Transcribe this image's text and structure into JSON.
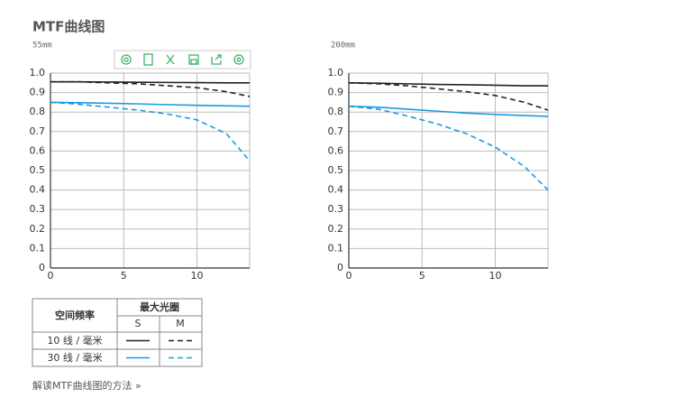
{
  "header": {
    "title": "MTF曲线图"
  },
  "chart_data": [
    {
      "type": "line",
      "subtitle": "55mm",
      "x": [
        0,
        2,
        4,
        6,
        8,
        10,
        12,
        13.6
      ],
      "xlim": [
        0,
        13.6
      ],
      "xticks": [
        0,
        5,
        10
      ],
      "ylim": [
        0,
        1
      ],
      "yticks": [
        0,
        0.1,
        0.2,
        0.3,
        0.4,
        0.5,
        0.6,
        0.7,
        0.8,
        0.9,
        {
          "value": 1,
          "label": "1.0"
        }
      ],
      "grid": true,
      "series": [
        {
          "color": "#222222",
          "linestyle": "solid",
          "values": [
            0.955,
            0.955,
            0.954,
            0.953,
            0.952,
            0.951,
            0.95,
            0.95
          ]
        },
        {
          "color": "#222222",
          "linestyle": "dashed",
          "values": [
            0.955,
            0.955,
            0.95,
            0.945,
            0.935,
            0.925,
            0.905,
            0.88
          ]
        },
        {
          "color": "#1a9ae0",
          "linestyle": "solid",
          "values": [
            0.85,
            0.848,
            0.845,
            0.842,
            0.838,
            0.835,
            0.832,
            0.83
          ]
        },
        {
          "color": "#1a9ae0",
          "linestyle": "dashed",
          "values": [
            0.85,
            0.84,
            0.825,
            0.81,
            0.79,
            0.76,
            0.69,
            0.55
          ]
        }
      ]
    },
    {
      "type": "line",
      "subtitle": "200mm",
      "x": [
        0,
        2,
        4,
        6,
        8,
        10,
        12,
        13.6
      ],
      "xlim": [
        0,
        13.6
      ],
      "xticks": [
        0,
        5,
        10
      ],
      "ylim": [
        0,
        1
      ],
      "yticks": [
        0,
        0.1,
        0.2,
        0.3,
        0.4,
        0.5,
        0.6,
        0.7,
        0.8,
        0.9,
        {
          "value": 1,
          "label": "1.0"
        }
      ],
      "grid": true,
      "series": [
        {
          "color": "#222222",
          "linestyle": "solid",
          "values": [
            0.95,
            0.948,
            0.945,
            0.942,
            0.94,
            0.938,
            0.935,
            0.935
          ]
        },
        {
          "color": "#222222",
          "linestyle": "dashed",
          "values": [
            0.95,
            0.945,
            0.935,
            0.92,
            0.905,
            0.885,
            0.85,
            0.81
          ]
        },
        {
          "color": "#1a9ae0",
          "linestyle": "solid",
          "values": [
            0.83,
            0.825,
            0.815,
            0.805,
            0.795,
            0.788,
            0.782,
            0.778
          ]
        },
        {
          "color": "#1a9ae0",
          "linestyle": "dashed",
          "values": [
            0.83,
            0.815,
            0.78,
            0.74,
            0.69,
            0.62,
            0.52,
            0.4
          ]
        }
      ]
    }
  ],
  "legend_table": {
    "header": [
      "空间频率",
      "最大光圈"
    ],
    "subheader": [
      "S",
      "M"
    ],
    "rows": [
      "10 线 / 毫米",
      "30 线 / 毫米"
    ]
  },
  "footer": {
    "link": "解读MTF曲线图的方法 »"
  }
}
